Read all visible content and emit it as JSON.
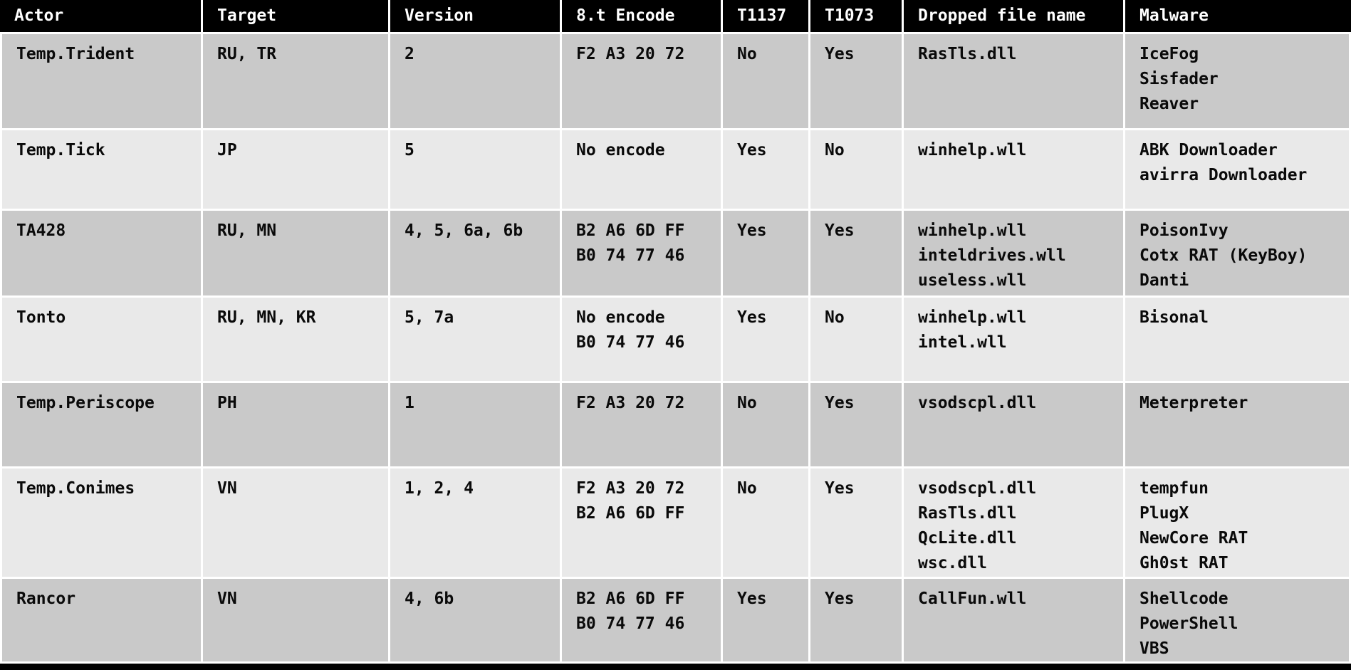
{
  "chart_data": {
    "type": "table",
    "columns": [
      "Actor",
      "Target",
      "Version",
      "8.t Encode",
      "T1137",
      "T1073",
      "Dropped file name",
      "Malware"
    ],
    "rows": [
      [
        "Temp.Trident",
        "RU, TR",
        "2",
        [
          "F2 A3 20 72"
        ],
        "No",
        "Yes",
        [
          "RasTls.dll"
        ],
        [
          "IceFog",
          "Sisfader",
          "Reaver"
        ]
      ],
      [
        "Temp.Tick",
        "JP",
        "5",
        [
          "No encode"
        ],
        "Yes",
        "No",
        [
          "winhelp.wll"
        ],
        [
          "ABK Downloader",
          "avirra Downloader"
        ]
      ],
      [
        "TA428",
        "RU, MN",
        "4, 5, 6a, 6b",
        [
          "B2 A6 6D FF",
          "B0 74 77 46"
        ],
        "Yes",
        "Yes",
        [
          "winhelp.wll",
          "inteldrives.wll",
          "useless.wll"
        ],
        [
          "PoisonIvy",
          "Cotx RAT (KeyBoy)",
          "Danti"
        ]
      ],
      [
        "Tonto",
        "RU, MN, KR",
        "5, 7a",
        [
          "No encode",
          "B0 74 77 46"
        ],
        "Yes",
        "No",
        [
          "winhelp.wll",
          "intel.wll"
        ],
        [
          "Bisonal"
        ]
      ],
      [
        "Temp.Periscope",
        "PH",
        "1",
        [
          "F2 A3 20 72"
        ],
        "No",
        "Yes",
        [
          "vsodscpl.dll"
        ],
        [
          "Meterpreter"
        ]
      ],
      [
        "Temp.Conimes",
        "VN",
        "1, 2, 4",
        [
          "F2 A3 20 72",
          "B2 A6 6D FF"
        ],
        "No",
        "Yes",
        [
          "vsodscpl.dll",
          "RasTls.dll",
          "QcLite.dll",
          "wsc.dll"
        ],
        [
          "tempfun",
          "PlugX",
          "NewCore RAT",
          "Gh0st RAT"
        ]
      ],
      [
        "Rancor",
        "VN",
        "4, 6b",
        [
          "B2 A6 6D FF",
          "B0 74 77 46"
        ],
        "Yes",
        "Yes",
        [
          "CallFun.wll"
        ],
        [
          "Shellcode",
          "PowerShell",
          "VBS"
        ]
      ]
    ],
    "layout": {
      "grid": "on",
      "header_position": "top"
    },
    "colors": {
      "header_bg": "#000000",
      "header_text": "#ffffff",
      "row_dark": "#c9c9c9",
      "row_light": "#e9e9e9",
      "grid_gap": "#ffffff",
      "body_text": "#0a0a0a"
    }
  }
}
